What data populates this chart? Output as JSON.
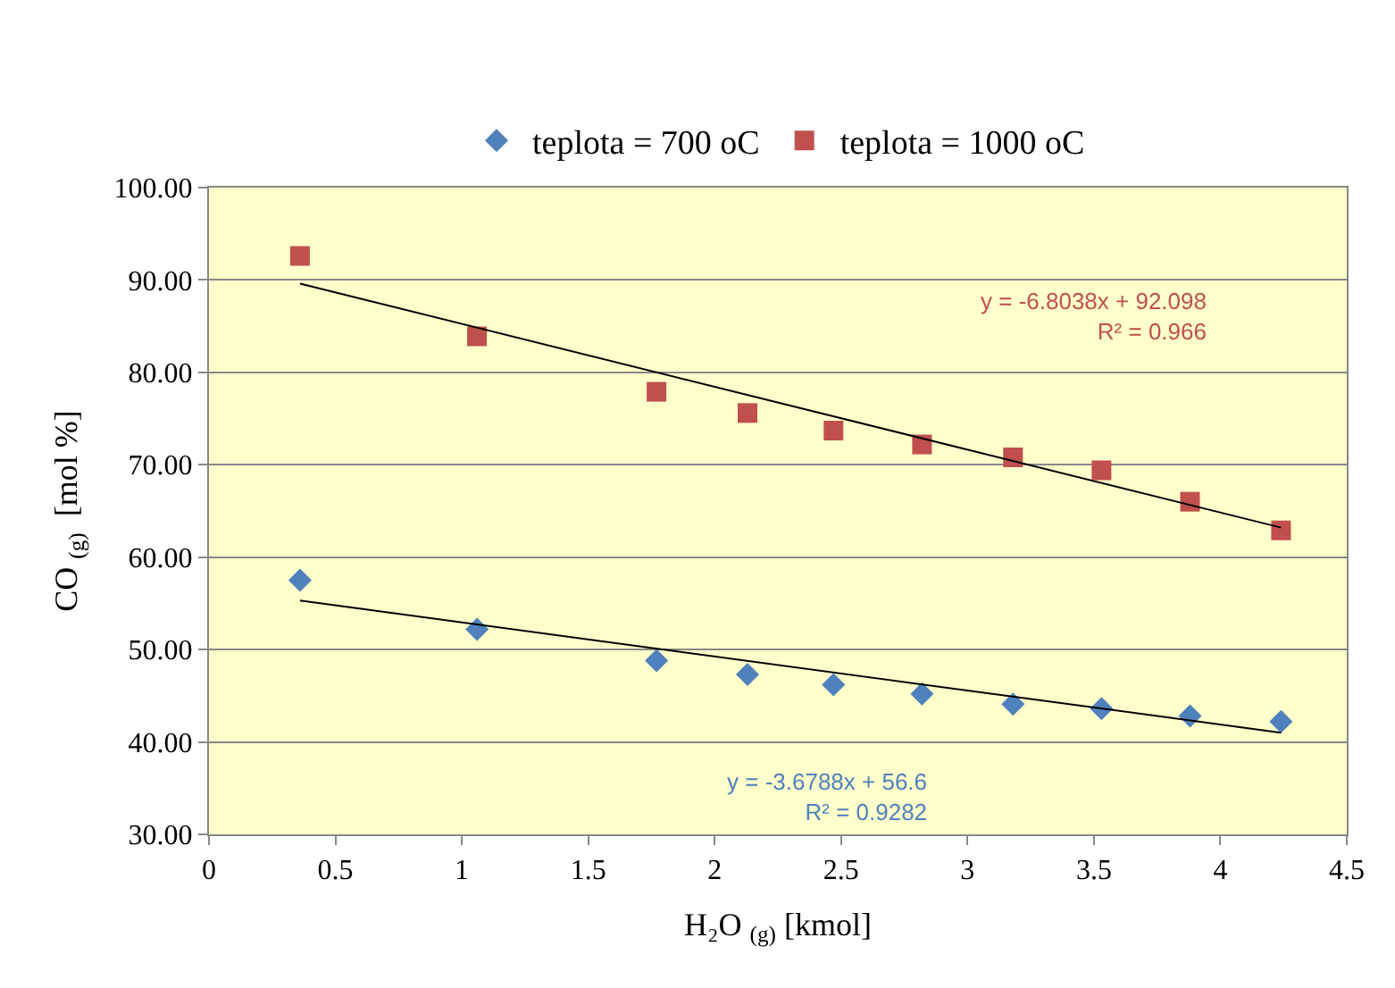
{
  "chart_data": {
    "type": "scatter",
    "xlabel": "H₂O $_{(g)}$ [kmol]",
    "ylabel": "CO $_{(g)}$  [mol %]",
    "xlim": [
      0,
      4.5
    ],
    "xticks": [
      0,
      0.5,
      1,
      1.5,
      2,
      2.5,
      3,
      3.5,
      4,
      4.5
    ],
    "ylim": [
      30,
      100
    ],
    "yticks": [
      {
        "value": 30,
        "label": "30.00"
      },
      {
        "value": 40,
        "label": "40.00"
      },
      {
        "value": 50,
        "label": "50.00"
      },
      {
        "value": 60,
        "label": "60.00"
      },
      {
        "value": 70,
        "label": "70.00"
      },
      {
        "value": 80,
        "label": "80.00"
      },
      {
        "value": 90,
        "label": "90.00"
      },
      {
        "value": 100,
        "label": "100.00"
      }
    ],
    "grid": "y",
    "legend": "top",
    "series": [
      {
        "name": "teplota = 700 oC",
        "marker": "diamond",
        "color": "#4f81bd",
        "x": [
          0.36,
          1.06,
          1.77,
          2.13,
          2.47,
          2.82,
          3.18,
          3.53,
          3.88,
          4.24
        ],
        "values": [
          57.5,
          52.2,
          48.8,
          47.3,
          46.2,
          45.2,
          44.1,
          43.6,
          42.8,
          42.2
        ]
      },
      {
        "name": "teplota = 1000 oC",
        "marker": "square",
        "color": "#c0504d",
        "x": [
          0.36,
          1.06,
          1.77,
          2.13,
          2.47,
          2.82,
          3.18,
          3.53,
          3.88,
          4.24
        ],
        "values": [
          92.6,
          83.9,
          77.9,
          75.6,
          73.7,
          72.2,
          70.8,
          69.4,
          66.0,
          62.9
        ]
      },
      {
        "type": "line",
        "marker": "none",
        "color": "#000000",
        "x": [
          0.36,
          4.24
        ],
        "values": [
          55.3,
          41.0
        ]
      },
      {
        "type": "line",
        "marker": "none",
        "color": "#000000",
        "x": [
          0.36,
          4.24
        ],
        "values": [
          89.6,
          63.2
        ]
      }
    ],
    "annotations": [
      "y = -3.6788x + 56.6\nR² = 0.9282",
      "y = -6.8038x + 92.098\nR² = 0.966"
    ]
  }
}
